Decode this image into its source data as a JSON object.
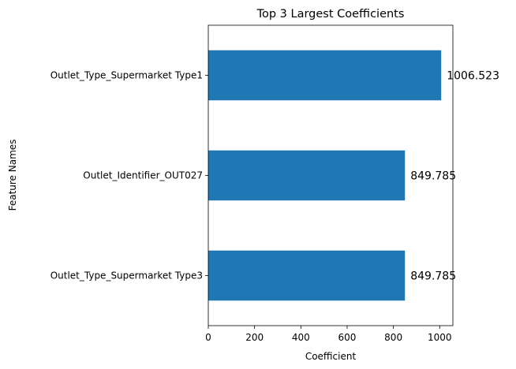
{
  "chart_data": {
    "type": "bar",
    "orientation": "horizontal",
    "title": "Top 3 Largest Coefficients",
    "xlabel": "Coefficient",
    "ylabel": "Feature Names",
    "categories": [
      "Outlet_Type_Supermarket Type1",
      "Outlet_Identifier_OUT027",
      "Outlet_Type_Supermarket Type3"
    ],
    "values": [
      1006.523,
      849.785,
      849.785
    ],
    "data_labels": [
      "1006.523",
      "849.785",
      "849.785"
    ],
    "xlim": [
      0,
      1057
    ],
    "xticks": [
      0,
      200,
      400,
      600,
      800,
      1000
    ],
    "grid": false,
    "bar_color": "#1f77b4"
  }
}
